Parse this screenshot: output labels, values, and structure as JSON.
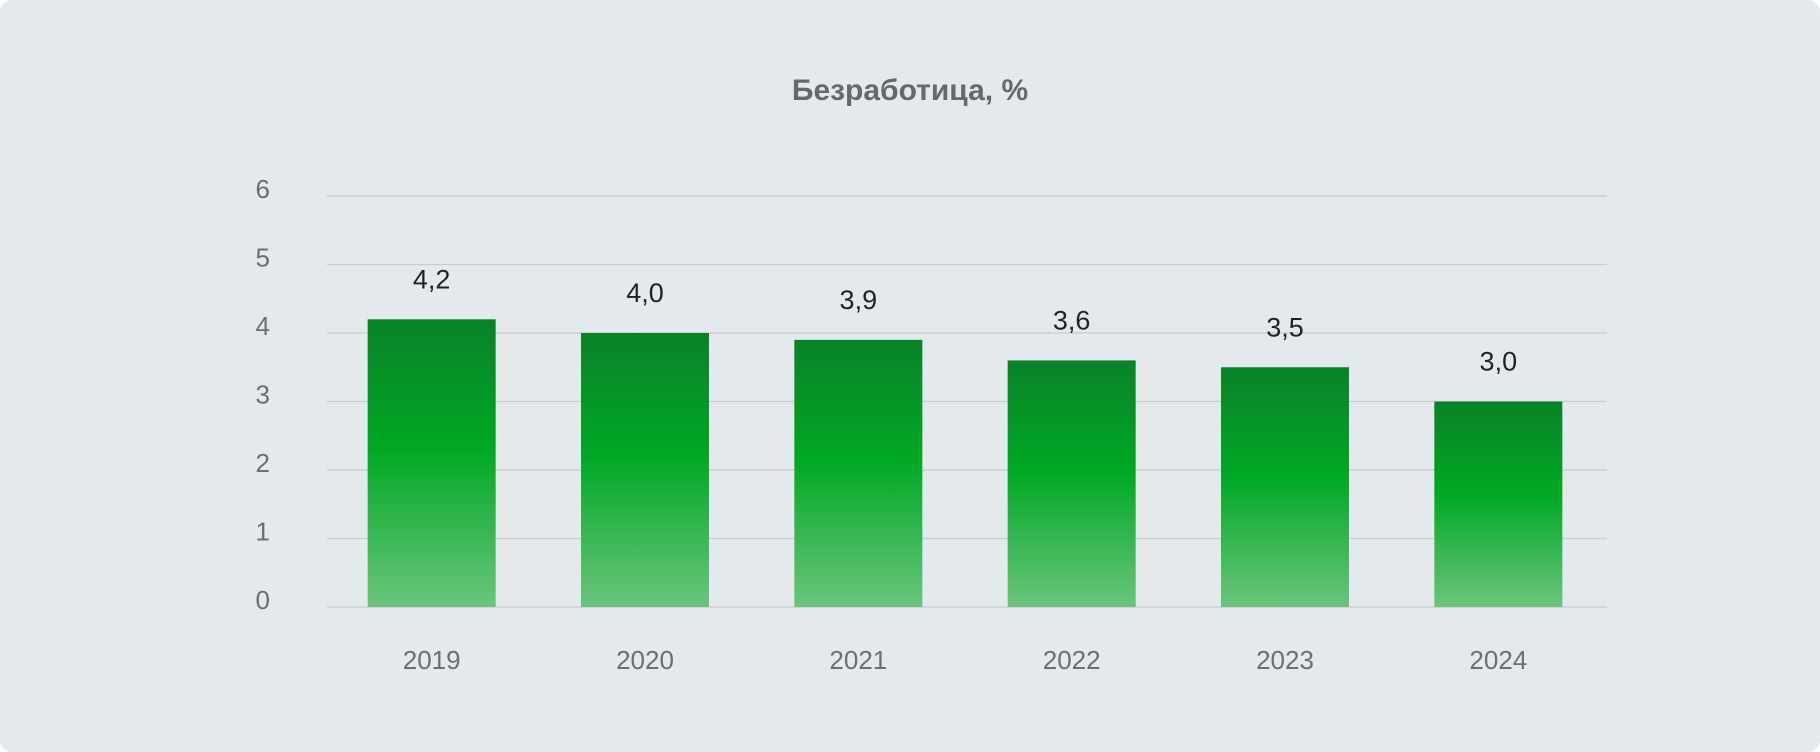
{
  "chart_data": {
    "type": "bar",
    "title": "Безработица, %",
    "categories": [
      "2019",
      "2020",
      "2021",
      "2022",
      "2023",
      "2024"
    ],
    "values": [
      4.2,
      4.0,
      3.9,
      3.6,
      3.5,
      3.0
    ],
    "value_labels": [
      "4,2",
      "4,0",
      "3,9",
      "3,6",
      "3,5",
      "3,0"
    ],
    "color": "#00a824",
    "ylim": [
      0,
      6
    ],
    "yticks": [
      0,
      1,
      2,
      3,
      4,
      5,
      6
    ],
    "grid": true
  }
}
